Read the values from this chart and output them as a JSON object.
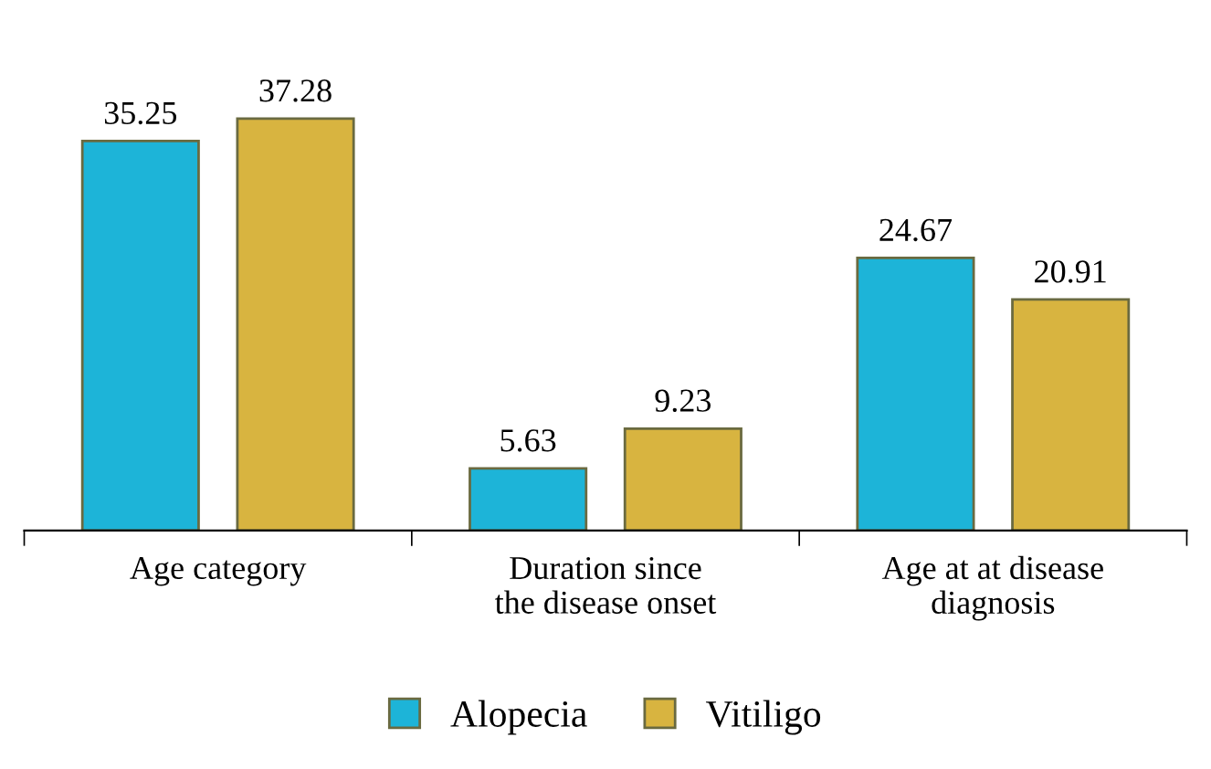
{
  "chart_data": {
    "type": "bar",
    "categories": [
      "Age category",
      "Duration since\nthe disease onset",
      "Age at at disease\ndiagnosis"
    ],
    "series": [
      {
        "name": "Alopecia",
        "color": "#1db4d8",
        "values": [
          35.25,
          5.63,
          24.67
        ]
      },
      {
        "name": "Vitiligo",
        "color": "#d8b440",
        "values": [
          37.28,
          9.23,
          20.91
        ]
      }
    ],
    "data_labels": true,
    "legend": "bottom",
    "grid": false
  }
}
